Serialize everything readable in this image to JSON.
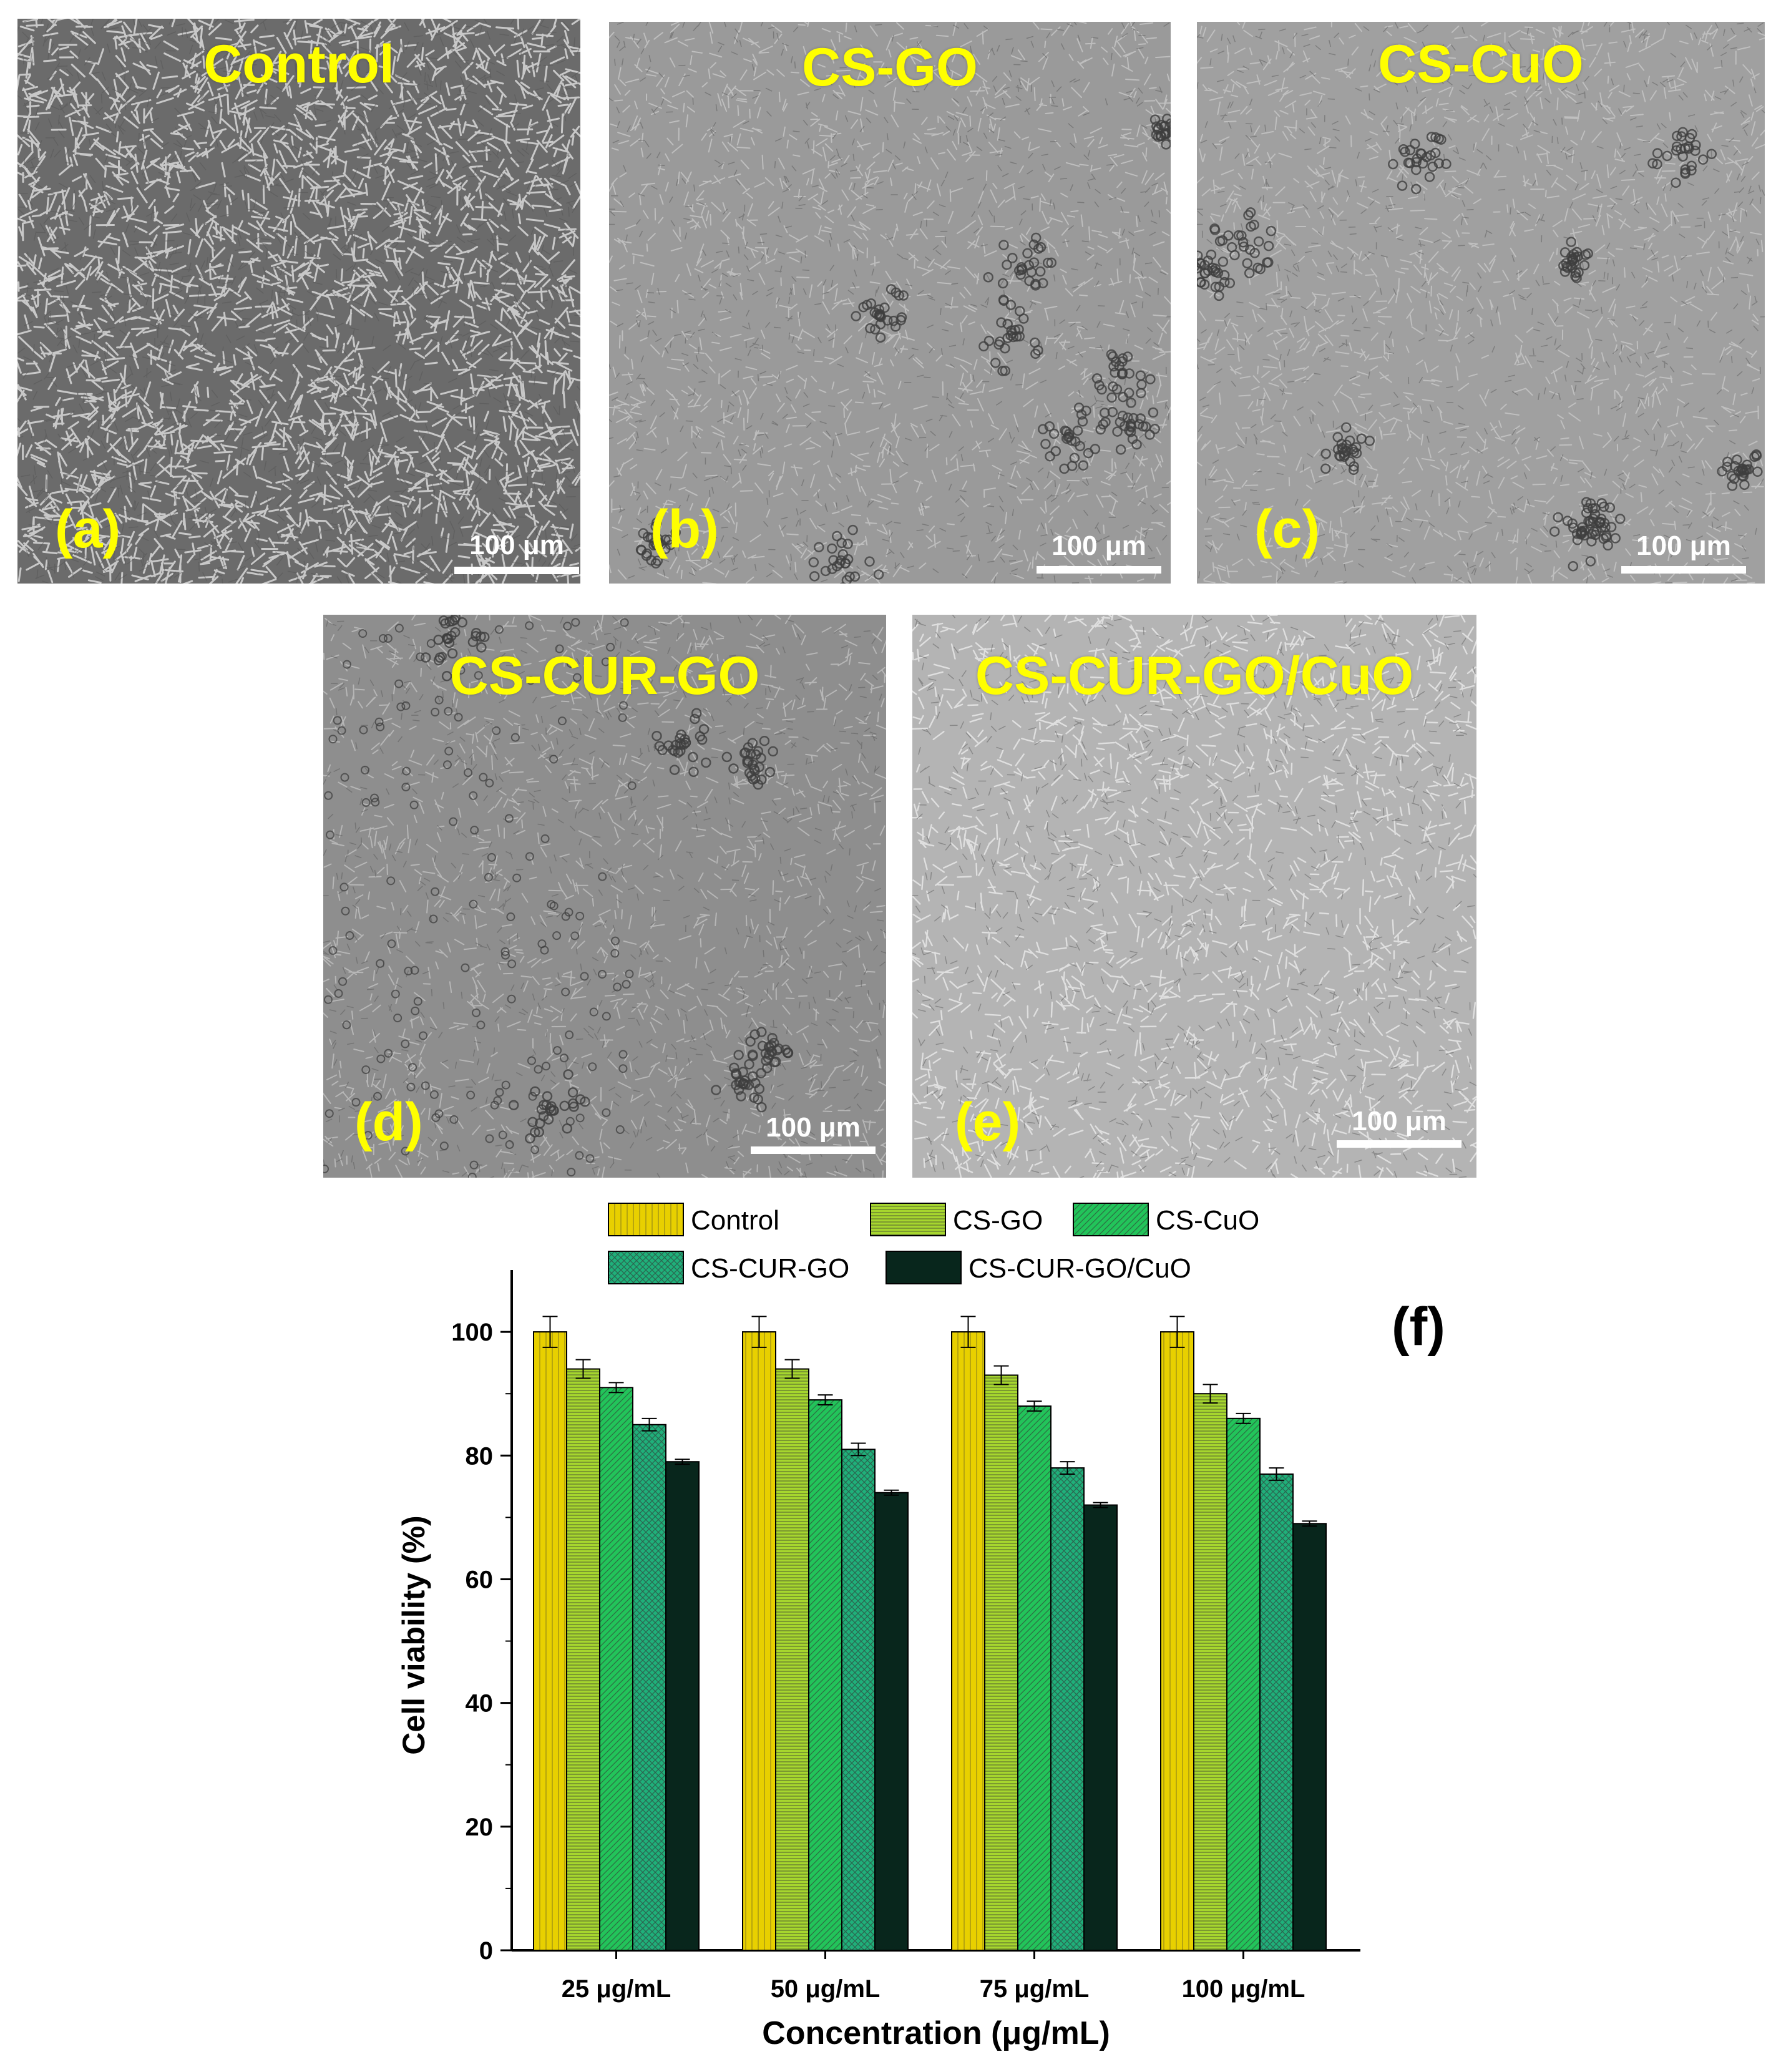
{
  "panels": [
    {
      "title": "Control",
      "letter": "(a)",
      "scalebar": "100 μm",
      "style": "dense"
    },
    {
      "title": "CS-GO",
      "letter": "(b)",
      "scalebar": "100 μm",
      "style": "light"
    },
    {
      "title": "CS-CuO",
      "letter": "(c)",
      "scalebar": "100 μm",
      "style": "light"
    },
    {
      "title": "CS-CUR-GO",
      "letter": "(d)",
      "scalebar": "100 μm",
      "style": "medium"
    },
    {
      "title": "CS-CUR-GO/CuO",
      "letter": "(e)",
      "scalebar": "100 μm",
      "style": "sparse"
    }
  ],
  "chart_data": {
    "type": "bar",
    "panel_label": "(f)",
    "categories": [
      "25 μg/mL",
      "50 μg/mL",
      "75 μg/mL",
      "100 μg/mL"
    ],
    "series": [
      {
        "name": "Control",
        "values": [
          100,
          100,
          100,
          100
        ],
        "errors": [
          2.5,
          2.5,
          2.5,
          2.5
        ],
        "color": "#e8d000",
        "pattern": "vlines"
      },
      {
        "name": "CS-GO",
        "values": [
          94,
          94,
          93,
          90
        ],
        "errors": [
          1.5,
          1.5,
          1.5,
          1.5
        ],
        "color": "#a6d62e",
        "pattern": "hlines"
      },
      {
        "name": "CS-CuO",
        "values": [
          91,
          89,
          88,
          86
        ],
        "errors": [
          0.8,
          0.8,
          0.8,
          0.8
        ],
        "color": "#22c45a",
        "pattern": "diag"
      },
      {
        "name": "CS-CUR-GO",
        "values": [
          85,
          81,
          78,
          77
        ],
        "errors": [
          1.0,
          1.0,
          1.0,
          1.0
        ],
        "color": "#1fb07a",
        "pattern": "cross"
      },
      {
        "name": "CS-CUR-GO/CuO",
        "values": [
          79,
          74,
          72,
          69
        ],
        "errors": [
          0.4,
          0.4,
          0.4,
          0.4
        ],
        "color": "#08261c",
        "pattern": "solid"
      }
    ],
    "xlabel": "Concentration (μg/mL)",
    "ylabel": "Cell viability (%)",
    "ylim": [
      0,
      110
    ],
    "yticks": [
      0,
      20,
      40,
      60,
      80,
      100
    ],
    "grid": false,
    "legend": "top"
  }
}
